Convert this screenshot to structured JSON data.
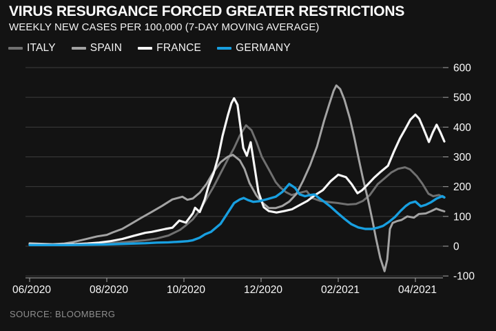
{
  "header": {
    "title": "VIRUS RESURGANCE FORCED GREATER RESTRICTIONS",
    "subtitle": "WEEKLY NEW CASES PER 100,000 (7-DAY MOVING AVERAGE)"
  },
  "source": "SOURCE: BLOOMBERG",
  "colors": {
    "background": "#131313",
    "grid": "#3d3d3d",
    "axis": "#a8a8a8",
    "tick_label": "#fafafa",
    "italy": "#707070",
    "spain": "#a3a3a3",
    "france": "#f7f7f7",
    "germany": "#189fe0"
  },
  "legend": [
    {
      "label": "ITALY",
      "color": "#707070"
    },
    {
      "label": "SPAIN",
      "color": "#a3a3a3"
    },
    {
      "label": "FRANCE",
      "color": "#f7f7f7"
    },
    {
      "label": "GERMANY",
      "color": "#189fe0"
    }
  ],
  "chart_data": {
    "type": "line",
    "title": "VIRUS RESURGANCE FORCED GREATER RESTRICTIONS",
    "subtitle": "WEEKLY NEW CASES PER 100,000 (7-DAY MOVING AVERAGE)",
    "xlabel": "",
    "ylabel": "Weekly new cases per 100,000 (7-day moving average)",
    "x_unit": "months since 2020-06-01",
    "xlim": [
      0,
      10.75
    ],
    "ylim": [
      -100,
      600
    ],
    "grid": true,
    "legend_position": "top-left",
    "y_ticks": [
      600,
      500,
      400,
      300,
      200,
      100,
      0,
      -100
    ],
    "x_ticks": [
      {
        "t": 0,
        "label": "06/2020"
      },
      {
        "t": 2,
        "label": "08/2020"
      },
      {
        "t": 4,
        "label": "10/2020"
      },
      {
        "t": 6,
        "label": "12/2020"
      },
      {
        "t": 8,
        "label": "02/2021"
      },
      {
        "t": 10,
        "label": "04/2021"
      }
    ],
    "series": [
      {
        "name": "ITALY",
        "color": "#707070",
        "width": 3,
        "points": [
          [
            0,
            8
          ],
          [
            0.5,
            5
          ],
          [
            1,
            5
          ],
          [
            1.5,
            6
          ],
          [
            2,
            9
          ],
          [
            2.5,
            14
          ],
          [
            3,
            20
          ],
          [
            3.3,
            26
          ],
          [
            3.6,
            36
          ],
          [
            3.9,
            55
          ],
          [
            4.05,
            70
          ],
          [
            4.23,
            90
          ],
          [
            4.41,
            120
          ],
          [
            4.59,
            160
          ],
          [
            4.77,
            200
          ],
          [
            4.95,
            245
          ],
          [
            5.13,
            290
          ],
          [
            5.3,
            330
          ],
          [
            5.45,
            372
          ],
          [
            5.61,
            406
          ],
          [
            5.75,
            390
          ],
          [
            5.88,
            350
          ],
          [
            6.02,
            300
          ],
          [
            6.2,
            258
          ],
          [
            6.38,
            215
          ],
          [
            6.5,
            197
          ],
          [
            6.64,
            182
          ],
          [
            6.79,
            172
          ],
          [
            6.96,
            178
          ],
          [
            7.18,
            185
          ],
          [
            7.32,
            162
          ],
          [
            7.54,
            152
          ],
          [
            7.77,
            148
          ],
          [
            7.98,
            145
          ],
          [
            8.25,
            140
          ],
          [
            8.46,
            142
          ],
          [
            8.64,
            152
          ],
          [
            8.82,
            172
          ],
          [
            9.02,
            208
          ],
          [
            9.2,
            228
          ],
          [
            9.38,
            248
          ],
          [
            9.55,
            260
          ],
          [
            9.73,
            265
          ],
          [
            9.86,
            258
          ],
          [
            10.04,
            235
          ],
          [
            10.18,
            210
          ],
          [
            10.34,
            176
          ],
          [
            10.46,
            168
          ],
          [
            10.61,
            172
          ],
          [
            10.75,
            163
          ]
        ]
      },
      {
        "name": "SPAIN",
        "color": "#a3a3a3",
        "width": 3,
        "points": [
          [
            0,
            10
          ],
          [
            0.3,
            8
          ],
          [
            0.6,
            7
          ],
          [
            0.9,
            9
          ],
          [
            1.1,
            13
          ],
          [
            1.3,
            19
          ],
          [
            1.5,
            25
          ],
          [
            1.75,
            33
          ],
          [
            2,
            38
          ],
          [
            2.15,
            46
          ],
          [
            2.27,
            52
          ],
          [
            2.4,
            58
          ],
          [
            2.63,
            75
          ],
          [
            2.89,
            95
          ],
          [
            3.16,
            115
          ],
          [
            3.43,
            135
          ],
          [
            3.7,
            157
          ],
          [
            3.96,
            166
          ],
          [
            4.09,
            156
          ],
          [
            4.23,
            160
          ],
          [
            4.41,
            180
          ],
          [
            4.59,
            210
          ],
          [
            4.77,
            250
          ],
          [
            4.95,
            282
          ],
          [
            5.13,
            300
          ],
          [
            5.27,
            307
          ],
          [
            5.45,
            288
          ],
          [
            5.57,
            260
          ],
          [
            5.7,
            212
          ],
          [
            5.88,
            170
          ],
          [
            6.02,
            148
          ],
          [
            6.2,
            128
          ],
          [
            6.38,
            128
          ],
          [
            6.55,
            135
          ],
          [
            6.73,
            150
          ],
          [
            6.91,
            175
          ],
          [
            7.09,
            220
          ],
          [
            7.27,
            272
          ],
          [
            7.45,
            335
          ],
          [
            7.63,
            420
          ],
          [
            7.77,
            478
          ],
          [
            7.88,
            522
          ],
          [
            7.95,
            540
          ],
          [
            8.05,
            528
          ],
          [
            8.16,
            492
          ],
          [
            8.3,
            430
          ],
          [
            8.41,
            368
          ],
          [
            8.52,
            300
          ],
          [
            8.64,
            228
          ],
          [
            8.77,
            158
          ],
          [
            8.88,
            90
          ],
          [
            8.98,
            25
          ],
          [
            9.09,
            -40
          ],
          [
            9.2,
            -84
          ],
          [
            9.27,
            -45
          ],
          [
            9.34,
            58
          ],
          [
            9.41,
            78
          ],
          [
            9.52,
            84
          ],
          [
            9.64,
            88
          ],
          [
            9.79,
            100
          ],
          [
            9.96,
            96
          ],
          [
            10.09,
            108
          ],
          [
            10.27,
            110
          ],
          [
            10.41,
            118
          ],
          [
            10.54,
            126
          ],
          [
            10.65,
            121
          ],
          [
            10.75,
            117
          ]
        ]
      },
      {
        "name": "FRANCE",
        "color": "#f7f7f7",
        "width": 3.2,
        "points": [
          [
            0,
            6
          ],
          [
            0.3,
            6
          ],
          [
            0.6,
            5
          ],
          [
            0.9,
            6
          ],
          [
            1.2,
            7
          ],
          [
            1.5,
            9
          ],
          [
            1.8,
            12
          ],
          [
            2.1,
            17
          ],
          [
            2.4,
            24
          ],
          [
            2.7,
            35
          ],
          [
            3,
            45
          ],
          [
            3.16,
            48
          ],
          [
            3.35,
            53
          ],
          [
            3.52,
            58
          ],
          [
            3.7,
            62
          ],
          [
            3.88,
            86
          ],
          [
            4.05,
            79
          ],
          [
            4.23,
            110
          ],
          [
            4.29,
            129
          ],
          [
            4.41,
            115
          ],
          [
            4.54,
            157
          ],
          [
            4.64,
            203
          ],
          [
            4.77,
            245
          ],
          [
            4.89,
            300
          ],
          [
            5,
            370
          ],
          [
            5.14,
            440
          ],
          [
            5.23,
            480
          ],
          [
            5.3,
            497
          ],
          [
            5.39,
            475
          ],
          [
            5.54,
            330
          ],
          [
            5.63,
            304
          ],
          [
            5.73,
            349
          ],
          [
            5.85,
            250
          ],
          [
            5.93,
            182
          ],
          [
            6.07,
            131
          ],
          [
            6.2,
            118
          ],
          [
            6.4,
            113
          ],
          [
            6.6,
            118
          ],
          [
            6.8,
            124
          ],
          [
            7,
            138
          ],
          [
            7.2,
            152
          ],
          [
            7.4,
            172
          ],
          [
            7.6,
            188
          ],
          [
            7.8,
            218
          ],
          [
            8,
            240
          ],
          [
            8.2,
            232
          ],
          [
            8.35,
            208
          ],
          [
            8.5,
            178
          ],
          [
            8.62,
            188
          ],
          [
            8.77,
            208
          ],
          [
            8.93,
            230
          ],
          [
            9.1,
            250
          ],
          [
            9.29,
            270
          ],
          [
            9.45,
            320
          ],
          [
            9.6,
            362
          ],
          [
            9.73,
            392
          ],
          [
            9.87,
            425
          ],
          [
            10,
            442
          ],
          [
            10.1,
            428
          ],
          [
            10.2,
            398
          ],
          [
            10.35,
            350
          ],
          [
            10.45,
            382
          ],
          [
            10.55,
            408
          ],
          [
            10.65,
            382
          ],
          [
            10.75,
            352
          ]
        ]
      },
      {
        "name": "GERMANY",
        "color": "#189fe0",
        "width": 3.4,
        "points": [
          [
            0,
            4
          ],
          [
            0.5,
            4
          ],
          [
            1,
            4
          ],
          [
            1.5,
            5
          ],
          [
            2,
            6
          ],
          [
            2.5,
            8
          ],
          [
            3,
            10
          ],
          [
            3.3,
            12
          ],
          [
            3.6,
            13
          ],
          [
            3.9,
            15
          ],
          [
            4.1,
            17
          ],
          [
            4.23,
            20
          ],
          [
            4.4,
            28
          ],
          [
            4.55,
            40
          ],
          [
            4.7,
            48
          ],
          [
            4.95,
            75
          ],
          [
            5.1,
            105
          ],
          [
            5.3,
            145
          ],
          [
            5.45,
            157
          ],
          [
            5.55,
            162
          ],
          [
            5.66,
            155
          ],
          [
            5.8,
            149
          ],
          [
            5.95,
            151
          ],
          [
            6.1,
            156
          ],
          [
            6.38,
            166
          ],
          [
            6.55,
            182
          ],
          [
            6.73,
            209
          ],
          [
            6.88,
            196
          ],
          [
            7,
            174
          ],
          [
            7.14,
            168
          ],
          [
            7.27,
            172
          ],
          [
            7.38,
            174
          ],
          [
            7.5,
            162
          ],
          [
            7.63,
            150
          ],
          [
            7.8,
            133
          ],
          [
            7.98,
            112
          ],
          [
            8.16,
            92
          ],
          [
            8.34,
            74
          ],
          [
            8.52,
            63
          ],
          [
            8.7,
            58
          ],
          [
            8.88,
            58
          ],
          [
            9.02,
            62
          ],
          [
            9.16,
            68
          ],
          [
            9.32,
            82
          ],
          [
            9.47,
            98
          ],
          [
            9.61,
            118
          ],
          [
            9.75,
            135
          ],
          [
            9.86,
            145
          ],
          [
            10,
            150
          ],
          [
            10.14,
            134
          ],
          [
            10.27,
            139
          ],
          [
            10.41,
            148
          ],
          [
            10.55,
            160
          ],
          [
            10.7,
            168
          ],
          [
            10.75,
            164
          ]
        ]
      }
    ]
  }
}
